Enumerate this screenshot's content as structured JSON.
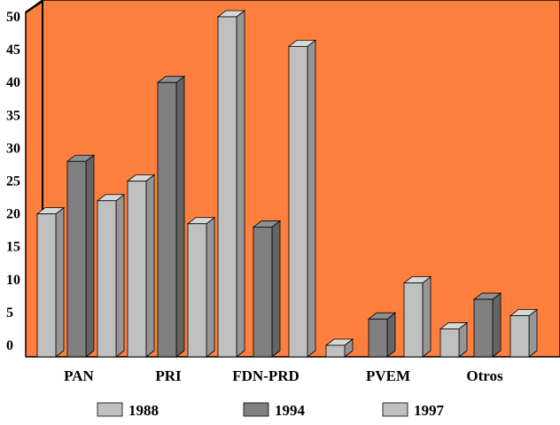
{
  "chart_data": {
    "type": "bar",
    "style": "3d",
    "categories": [
      "PAN",
      "PRI",
      "FDN-PRD",
      "PVEM",
      "Otros"
    ],
    "series": [
      {
        "name": "1988",
        "values": [
          20,
          25,
          50,
          0,
          2.5
        ],
        "color": "#c0c0c0"
      },
      {
        "name": "1994",
        "values": [
          28,
          40,
          18,
          4,
          7
        ],
        "color": "#808080"
      },
      {
        "name": "1997",
        "values": [
          22,
          18.5,
          45.5,
          9.5,
          4.5
        ],
        "color": "#c0c0c0"
      }
    ],
    "y_ticks": [
      "0",
      "5",
      "10",
      "15",
      "20",
      "25",
      "30",
      "35",
      "40",
      "45",
      "50"
    ],
    "ylim": [
      0,
      50
    ],
    "legend_position": "bottom",
    "title": "",
    "xlabel": "",
    "ylabel": ""
  },
  "colors": {
    "plot_background": "#ff7f3f",
    "page_background": "#ffffff",
    "light_bar": "#c0c0c0",
    "dark_bar": "#808080",
    "outline": "#000000"
  }
}
